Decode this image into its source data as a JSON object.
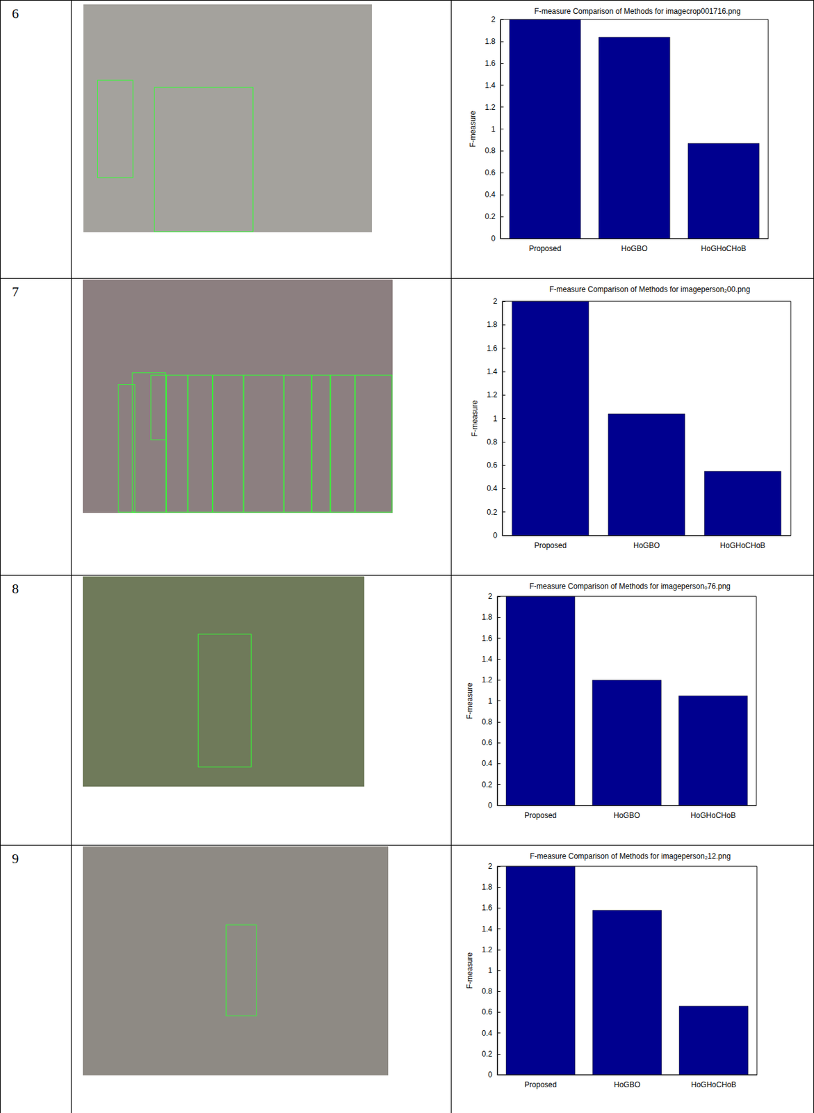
{
  "row_labels": [
    "6",
    "7",
    "8",
    "9"
  ],
  "chart_data": [
    {
      "type": "bar",
      "title": "F-measure Comparison of Methods for imagecrop001716.png",
      "y_label": "F-measure",
      "categories": [
        "Proposed",
        "HoGBO",
        "HoGHoCHoB"
      ],
      "values": [
        2,
        1.84,
        0.87
      ],
      "color": "#00008f",
      "ylim": [
        0,
        2
      ],
      "yticks": [
        0,
        0.2,
        0.4,
        0.6,
        0.8,
        1,
        1.2,
        1.4,
        1.6,
        1.8,
        2
      ],
      "grid": false
    },
    {
      "type": "bar",
      "title": "F-measure Comparison of Methods for imageperson₂00.png",
      "y_label": "F-measure",
      "categories": [
        "Proposed",
        "HoGBO",
        "HoGHoCHoB"
      ],
      "values": [
        2,
        1.04,
        0.55
      ],
      "color": "#00008f",
      "ylim": [
        0,
        2
      ],
      "yticks": [
        0,
        0.2,
        0.4,
        0.6,
        0.8,
        1,
        1.2,
        1.4,
        1.6,
        1.8,
        2
      ],
      "grid": false
    },
    {
      "type": "bar",
      "title": "F-measure Comparison of Methods for imageperson₀76.png",
      "y_label": "F-measure",
      "categories": [
        "Proposed",
        "HoGBO",
        "HoGHoCHoB"
      ],
      "values": [
        2,
        1.2,
        1.05
      ],
      "color": "#00008f",
      "ylim": [
        0,
        2
      ],
      "yticks": [
        0,
        0.2,
        0.4,
        0.6,
        0.8,
        1,
        1.2,
        1.4,
        1.6,
        1.8,
        2
      ],
      "grid": false
    },
    {
      "type": "bar",
      "title": "F-measure Comparison of Methods for imageperson₂12.png",
      "y_label": "F-measure",
      "categories": [
        "Proposed",
        "HoGBO",
        "HoGHoCHoB"
      ],
      "values": [
        2,
        1.58,
        0.66
      ],
      "color": "#00008f",
      "ylim": [
        0,
        2
      ],
      "yticks": [
        0,
        0.2,
        0.4,
        0.6,
        0.8,
        1,
        1.2,
        1.4,
        1.6,
        1.8,
        2
      ],
      "grid": false
    }
  ]
}
